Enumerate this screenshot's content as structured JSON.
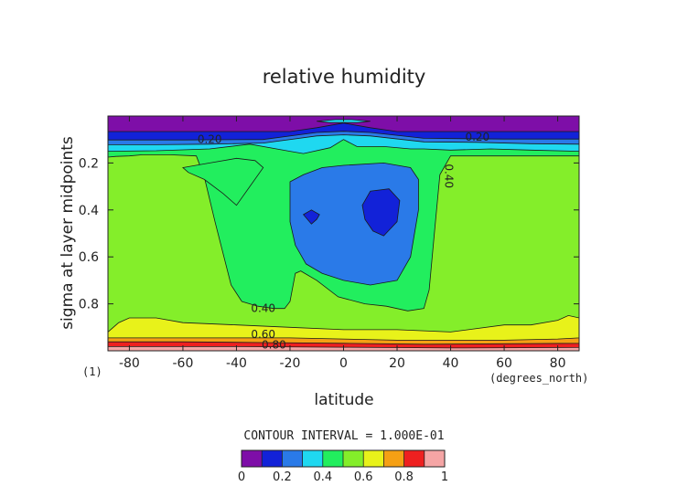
{
  "chart_data": {
    "type": "contour",
    "title": "relative humidity",
    "xlabel": "latitude",
    "ylabel": "sigma at layer midpoints",
    "x_unit": "(degrees_north)",
    "y_unit": "(1)",
    "xlim": [
      -88,
      88
    ],
    "ylim": [
      1.0,
      0.0
    ],
    "x_ticks": [
      -80,
      -60,
      -40,
      -20,
      0,
      20,
      40,
      60,
      80
    ],
    "y_ticks": [
      0.2,
      0.4,
      0.6,
      0.8
    ],
    "contour_interval_text": "CONTOUR INTERVAL = 1.000E-01",
    "contour_labels": [
      {
        "text": "0.20",
        "lat": -50,
        "sigma": 0.1
      },
      {
        "text": "0.20",
        "lat": 50,
        "sigma": 0.09
      },
      {
        "text": "0.40",
        "lat": 38,
        "sigma": 0.24
      },
      {
        "text": "0.40",
        "lat": -30,
        "sigma": 0.82
      },
      {
        "text": "0.60",
        "lat": -30,
        "sigma": 0.93
      },
      {
        "text": "0.80",
        "lat": -26,
        "sigma": 0.975
      }
    ],
    "levels": [
      0,
      0.1,
      0.2,
      0.3,
      0.4,
      0.5,
      0.6,
      0.7,
      0.8,
      0.9,
      1.0
    ],
    "colorbar": {
      "colors": [
        "#7e0ea8",
        "#1222d8",
        "#2a7ae8",
        "#1fd8f0",
        "#22ee5e",
        "#84ee2a",
        "#e8f21a",
        "#f5a014",
        "#ee2020",
        "#f5a5a5"
      ],
      "tick_labels": [
        "0",
        "0.2",
        "0.4",
        "0.6",
        "0.8",
        "1"
      ],
      "tick_values": [
        0,
        0.2,
        0.4,
        0.6,
        0.8,
        1.0
      ]
    },
    "bands": [
      {
        "level": 0.1,
        "color": "#1222d8",
        "points": [
          [
            -88,
            0.102
          ],
          [
            -60,
            0.102
          ],
          [
            -30,
            0.1
          ],
          [
            -10,
            0.07
          ],
          [
            0,
            0.065
          ],
          [
            10,
            0.07
          ],
          [
            30,
            0.095
          ],
          [
            60,
            0.098
          ],
          [
            88,
            0.098
          ],
          [
            88,
            0
          ],
          [
            -88,
            0
          ]
        ]
      },
      {
        "level": 0.2,
        "color": "#2a7ae8",
        "points": [
          [
            -88,
            0.122
          ],
          [
            -70,
            0.122
          ],
          [
            -50,
            0.12
          ],
          [
            -30,
            0.115
          ],
          [
            -10,
            0.085
          ],
          [
            0,
            0.08
          ],
          [
            10,
            0.085
          ],
          [
            30,
            0.11
          ],
          [
            50,
            0.112
          ],
          [
            70,
            0.118
          ],
          [
            88,
            0.12
          ],
          [
            88,
            0
          ],
          [
            -88,
            0
          ]
        ]
      },
      {
        "level": 0.3,
        "color": "#1fd8f0",
        "points": [
          [
            -88,
            0.15
          ],
          [
            -70,
            0.148
          ],
          [
            -50,
            0.14
          ],
          [
            -35,
            0.12
          ],
          [
            -25,
            0.14
          ],
          [
            -20,
            0.15
          ],
          [
            -15,
            0.16
          ],
          [
            -5,
            0.135
          ],
          [
            0,
            0.1
          ],
          [
            5,
            0.13
          ],
          [
            15,
            0.13
          ],
          [
            25,
            0.14
          ],
          [
            30,
            0.14
          ],
          [
            40,
            0.145
          ],
          [
            55,
            0.14
          ],
          [
            70,
            0.145
          ],
          [
            88,
            0.15
          ],
          [
            88,
            0
          ],
          [
            -88,
            0
          ]
        ]
      },
      {
        "level": 0.4,
        "color": "#22ee5e",
        "points": [
          [
            -88,
            0.175
          ],
          [
            -85,
            0.172
          ],
          [
            -80,
            0.17
          ],
          [
            -75,
            0.165
          ],
          [
            -65,
            0.165
          ],
          [
            -55,
            0.17
          ],
          [
            -52,
            0.26
          ],
          [
            -48,
            0.45
          ],
          [
            -42,
            0.72
          ],
          [
            -38,
            0.79
          ],
          [
            -32,
            0.81
          ],
          [
            -26,
            0.82
          ],
          [
            -22,
            0.82
          ],
          [
            -20,
            0.79
          ],
          [
            -18,
            0.67
          ],
          [
            -16,
            0.66
          ],
          [
            -10,
            0.7
          ],
          [
            -2,
            0.77
          ],
          [
            8,
            0.8
          ],
          [
            16,
            0.81
          ],
          [
            24,
            0.83
          ],
          [
            30,
            0.82
          ],
          [
            32,
            0.74
          ],
          [
            34,
            0.49
          ],
          [
            36,
            0.25
          ],
          [
            40,
            0.17
          ],
          [
            50,
            0.17
          ],
          [
            60,
            0.17
          ],
          [
            70,
            0.17
          ],
          [
            80,
            0.17
          ],
          [
            88,
            0.17
          ],
          [
            88,
            0
          ],
          [
            -88,
            0
          ]
        ]
      },
      {
        "level": 0.5,
        "color": "#84ee2a",
        "points": [
          [
            -88,
            0.92
          ],
          [
            -84,
            0.88
          ],
          [
            -80,
            0.86
          ],
          [
            -74,
            0.86
          ],
          [
            -70,
            0.86
          ],
          [
            -60,
            0.88
          ],
          [
            -40,
            0.89
          ],
          [
            -20,
            0.9
          ],
          [
            0,
            0.91
          ],
          [
            20,
            0.91
          ],
          [
            40,
            0.92
          ],
          [
            60,
            0.89
          ],
          [
            70,
            0.89
          ],
          [
            80,
            0.87
          ],
          [
            84,
            0.85
          ],
          [
            88,
            0.86
          ],
          [
            88,
            0
          ],
          [
            -88,
            0
          ]
        ]
      },
      {
        "level": 0.6,
        "color": "#e8f21a",
        "points": [
          [
            -88,
            0.945
          ],
          [
            -60,
            0.945
          ],
          [
            -40,
            0.945
          ],
          [
            -20,
            0.945
          ],
          [
            0,
            0.95
          ],
          [
            20,
            0.955
          ],
          [
            40,
            0.955
          ],
          [
            60,
            0.955
          ],
          [
            80,
            0.95
          ],
          [
            88,
            0.945
          ],
          [
            88,
            0
          ],
          [
            -88,
            0
          ]
        ]
      },
      {
        "level": 0.7,
        "color": "#f5a014",
        "points": [
          [
            -88,
            0.962
          ],
          [
            -60,
            0.962
          ],
          [
            -30,
            0.965
          ],
          [
            0,
            0.968
          ],
          [
            30,
            0.972
          ],
          [
            60,
            0.97
          ],
          [
            88,
            0.968
          ],
          [
            88,
            0
          ],
          [
            -88,
            0
          ]
        ]
      },
      {
        "level": 0.8,
        "color": "#ee2020",
        "points": [
          [
            -88,
            0.982
          ],
          [
            -40,
            0.982
          ],
          [
            0,
            0.985
          ],
          [
            40,
            0.988
          ],
          [
            88,
            0.986
          ],
          [
            88,
            0
          ],
          [
            -88,
            0
          ]
        ]
      }
    ],
    "regions": [
      {
        "fill": "#7e0ea8",
        "points": [
          [
            -88,
            0
          ],
          [
            88,
            0
          ],
          [
            88,
            0.066
          ],
          [
            60,
            0.066
          ],
          [
            20,
            0.066
          ],
          [
            10,
            0.05
          ],
          [
            0,
            0.03
          ],
          [
            -10,
            0.05
          ],
          [
            -20,
            0.066
          ],
          [
            -60,
            0.066
          ],
          [
            -88,
            0.066
          ]
        ]
      },
      {
        "fill": "#1fd8f0",
        "points": [
          [
            -10,
            0.022
          ],
          [
            -3,
            0.015
          ],
          [
            3,
            0.015
          ],
          [
            10,
            0.022
          ],
          [
            5,
            0.028
          ],
          [
            -5,
            0.028
          ]
        ]
      },
      {
        "fill": "#22ee5e",
        "points": [
          [
            -60,
            0.22
          ],
          [
            -50,
            0.2
          ],
          [
            -40,
            0.18
          ],
          [
            -33,
            0.19
          ],
          [
            -30,
            0.22
          ],
          [
            -35,
            0.3
          ],
          [
            -40,
            0.38
          ],
          [
            -45,
            0.33
          ],
          [
            -52,
            0.27
          ],
          [
            -58,
            0.24
          ]
        ]
      },
      {
        "fill": "#2a7ae8",
        "points": [
          [
            -20,
            0.28
          ],
          [
            -15,
            0.25
          ],
          [
            -8,
            0.22
          ],
          [
            0,
            0.21
          ],
          [
            15,
            0.2
          ],
          [
            25,
            0.22
          ],
          [
            28,
            0.27
          ],
          [
            28,
            0.4
          ],
          [
            25,
            0.6
          ],
          [
            20,
            0.7
          ],
          [
            10,
            0.72
          ],
          [
            0,
            0.7
          ],
          [
            -8,
            0.67
          ],
          [
            -14,
            0.63
          ],
          [
            -18,
            0.55
          ],
          [
            -20,
            0.45
          ],
          [
            -20,
            0.35
          ]
        ]
      },
      {
        "fill": "#1222d8",
        "points": [
          [
            -15,
            0.42
          ],
          [
            -12,
            0.4
          ],
          [
            -9,
            0.42
          ],
          [
            -10,
            0.44
          ],
          [
            -12,
            0.46
          ]
        ]
      },
      {
        "fill": "#1222d8",
        "points": [
          [
            7,
            0.38
          ],
          [
            10,
            0.32
          ],
          [
            17,
            0.31
          ],
          [
            21,
            0.36
          ],
          [
            20,
            0.45
          ],
          [
            15,
            0.51
          ],
          [
            11,
            0.49
          ],
          [
            8,
            0.44
          ]
        ]
      }
    ]
  }
}
